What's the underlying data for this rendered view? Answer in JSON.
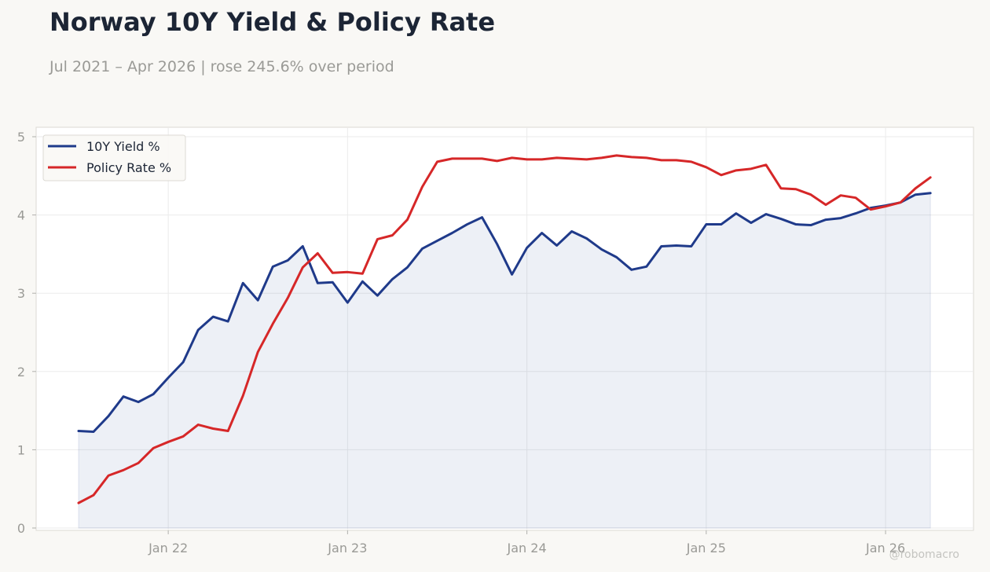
{
  "chart_data": {
    "type": "line",
    "title": "Norway 10Y Yield & Policy Rate",
    "subtitle": "Jul 2021 – Apr 2026 | rose 245.6% over period",
    "xlabel": "",
    "ylabel": "",
    "ylim": [
      0,
      5
    ],
    "yticks": [
      0,
      1,
      2,
      3,
      4,
      5
    ],
    "xticks": [
      {
        "label": "Jan 22",
        "date": "2022-01"
      },
      {
        "label": "Jan 23",
        "date": "2023-01"
      },
      {
        "label": "Jan 24",
        "date": "2024-01"
      },
      {
        "label": "Jan 25",
        "date": "2025-01"
      },
      {
        "label": "Jan 26",
        "date": "2026-01"
      }
    ],
    "x": [
      "2021-07",
      "2021-08",
      "2021-09",
      "2021-10",
      "2021-11",
      "2021-12",
      "2022-01",
      "2022-02",
      "2022-03",
      "2022-04",
      "2022-05",
      "2022-06",
      "2022-07",
      "2022-08",
      "2022-09",
      "2022-10",
      "2022-11",
      "2022-12",
      "2023-01",
      "2023-02",
      "2023-03",
      "2023-04",
      "2023-05",
      "2023-06",
      "2023-07",
      "2023-08",
      "2023-09",
      "2023-10",
      "2023-11",
      "2023-12",
      "2024-01",
      "2024-02",
      "2024-03",
      "2024-04",
      "2024-05",
      "2024-06",
      "2024-07",
      "2024-08",
      "2024-09",
      "2024-10",
      "2024-11",
      "2024-12",
      "2025-01",
      "2025-02",
      "2025-03",
      "2025-04",
      "2025-05",
      "2025-06",
      "2025-07",
      "2025-08",
      "2025-09",
      "2025-10",
      "2025-11",
      "2025-12",
      "2026-01",
      "2026-02",
      "2026-03",
      "2026-04"
    ],
    "grid": true,
    "legend_position": "top-left",
    "series": [
      {
        "name": "10Y Yield %",
        "color": "#1f3a8a",
        "fill": true,
        "values": [
          1.24,
          1.23,
          1.43,
          1.68,
          1.61,
          1.71,
          1.92,
          2.12,
          2.53,
          2.7,
          2.64,
          3.13,
          2.91,
          3.34,
          3.42,
          3.6,
          3.13,
          3.14,
          2.88,
          3.15,
          2.97,
          3.18,
          3.33,
          3.57,
          3.67,
          3.77,
          3.88,
          3.97,
          3.63,
          3.24,
          3.58,
          3.77,
          3.61,
          3.79,
          3.7,
          3.56,
          3.46,
          3.3,
          3.34,
          3.6,
          3.61,
          3.6,
          3.88,
          3.88,
          4.02,
          3.9,
          4.01,
          3.95,
          3.88,
          3.87,
          3.94,
          3.96,
          4.02,
          4.09,
          4.12,
          4.16,
          4.26,
          4.28
        ]
      },
      {
        "name": "Policy Rate %",
        "color": "#d62728",
        "fill": false,
        "values": [
          0.32,
          0.42,
          0.67,
          0.74,
          0.83,
          1.02,
          1.1,
          1.17,
          1.32,
          1.27,
          1.24,
          1.69,
          2.25,
          2.61,
          2.94,
          3.33,
          3.51,
          3.26,
          3.27,
          3.25,
          3.69,
          3.74,
          3.94,
          4.36,
          4.68,
          4.72,
          4.72,
          4.72,
          4.69,
          4.73,
          4.71,
          4.71,
          4.73,
          4.72,
          4.71,
          4.73,
          4.76,
          4.74,
          4.73,
          4.7,
          4.7,
          4.68,
          4.61,
          4.51,
          4.57,
          4.59,
          4.64,
          4.34,
          4.33,
          4.26,
          4.13,
          4.25,
          4.22,
          4.07,
          4.11,
          4.16,
          4.34,
          4.48
        ]
      }
    ]
  },
  "watermark": "@robomacro"
}
